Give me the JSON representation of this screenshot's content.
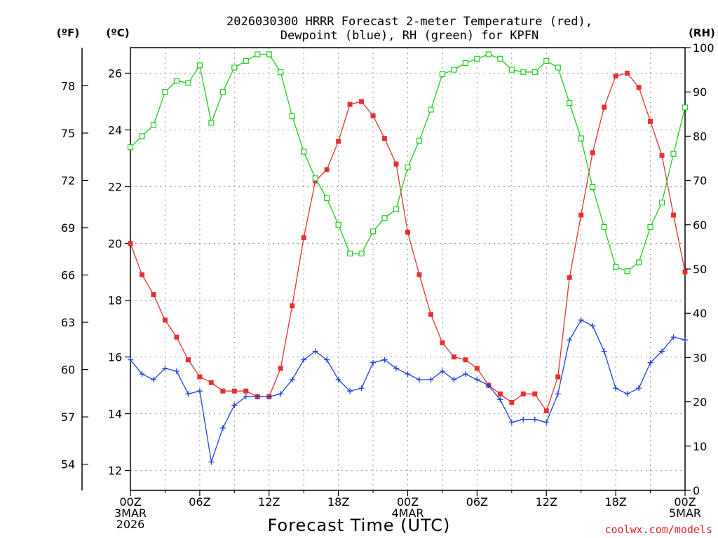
{
  "chart_data": {
    "type": "line",
    "title_lines": [
      "2026030300 HRRR Forecast 2-meter Temperature (red),",
      "Dewpoint (blue), RH (green) for KPFN"
    ],
    "unit_labels": {
      "fahrenheit": "(ºF)",
      "celsius": "(ºC)",
      "rh": "(RH)"
    },
    "xlabel": "Forecast Time (UTC)",
    "credit": "coolwx.com/models",
    "x_range_hours": [
      0,
      48
    ],
    "x_ticks": [
      {
        "hour": 0,
        "lines": [
          "00Z",
          "3MAR",
          "2026"
        ]
      },
      {
        "hour": 6,
        "lines": [
          "06Z"
        ]
      },
      {
        "hour": 12,
        "lines": [
          "12Z"
        ]
      },
      {
        "hour": 18,
        "lines": [
          "18Z"
        ]
      },
      {
        "hour": 24,
        "lines": [
          "00Z",
          "4MAR"
        ]
      },
      {
        "hour": 30,
        "lines": [
          "06Z"
        ]
      },
      {
        "hour": 36,
        "lines": [
          "12Z"
        ]
      },
      {
        "hour": 42,
        "lines": [
          "18Z"
        ]
      },
      {
        "hour": 48,
        "lines": [
          "00Z",
          "5MAR"
        ]
      }
    ],
    "celsius_range": [
      11.3,
      26.9
    ],
    "celsius_ticks": [
      12,
      14,
      16,
      18,
      20,
      22,
      24,
      26
    ],
    "fahrenheit_ticks": [
      54,
      57,
      60,
      63,
      66,
      69,
      72,
      75,
      78
    ],
    "rh_range": [
      0,
      100
    ],
    "rh_ticks": [
      0,
      10,
      20,
      30,
      40,
      50,
      60,
      70,
      80,
      90,
      100
    ],
    "colors": {
      "temperature": "#e83030",
      "dewpoint": "#2040e0",
      "rh": "#20cc20",
      "grid": "#999999"
    },
    "series": [
      {
        "name": "Temperature",
        "unit": "C",
        "marker": "square-filled",
        "values": [
          20.0,
          18.9,
          18.2,
          17.3,
          16.7,
          15.9,
          15.3,
          15.1,
          14.8,
          14.8,
          14.8,
          14.6,
          14.6,
          15.6,
          17.8,
          20.2,
          22.2,
          22.6,
          23.6,
          24.9,
          25.0,
          24.5,
          23.7,
          22.8,
          20.4,
          18.9,
          17.5,
          16.5,
          16.0,
          15.9,
          15.6,
          15.0,
          14.7,
          14.4,
          14.7,
          14.7,
          14.1,
          15.3,
          18.8,
          21.0,
          23.2,
          24.8,
          25.9,
          26.0,
          25.5,
          24.3,
          23.1,
          21.0,
          19.0
        ]
      },
      {
        "name": "Dewpoint",
        "unit": "C",
        "marker": "plus",
        "values": [
          15.9,
          15.4,
          15.2,
          15.6,
          15.5,
          14.7,
          14.8,
          12.3,
          13.5,
          14.3,
          14.6,
          14.6,
          14.6,
          14.7,
          15.2,
          15.9,
          16.2,
          15.9,
          15.2,
          14.8,
          14.9,
          15.8,
          15.9,
          15.6,
          15.4,
          15.2,
          15.2,
          15.5,
          15.2,
          15.4,
          15.2,
          15.0,
          14.5,
          13.7,
          13.8,
          13.8,
          13.7,
          14.7,
          16.6,
          17.3,
          17.1,
          16.2,
          14.9,
          14.7,
          14.9,
          15.8,
          16.2,
          16.7,
          16.6
        ]
      },
      {
        "name": "RH",
        "unit": "%",
        "marker": "square-open",
        "values": [
          77.5,
          80,
          82.5,
          90,
          92.5,
          92,
          96,
          83,
          90,
          95.5,
          97,
          98.5,
          98.5,
          94.5,
          84.5,
          76.5,
          70.5,
          66,
          60,
          53.5,
          53.5,
          58.5,
          61.5,
          63.5,
          73,
          79,
          86,
          94,
          95,
          96.5,
          97.5,
          98.5,
          97.5,
          95,
          94.5,
          94.5,
          97,
          95.5,
          87.5,
          79.5,
          68.5,
          59.5,
          50.5,
          49.5,
          51.5,
          59.5,
          65,
          76,
          86.5
        ]
      }
    ]
  }
}
